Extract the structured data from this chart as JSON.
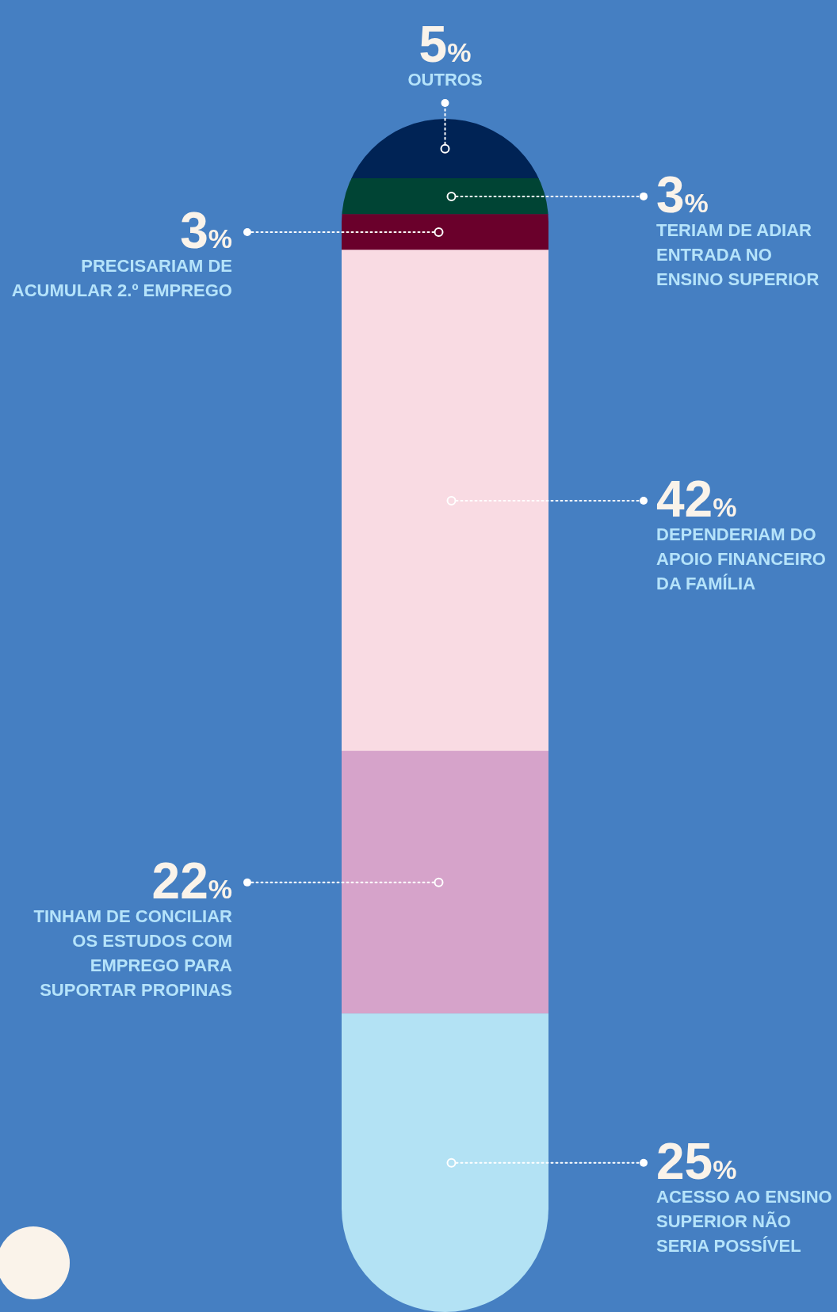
{
  "chart_data": {
    "type": "bar",
    "stacked": true,
    "categories": [
      null
    ],
    "tick_labels": false,
    "legend": false,
    "series": [
      {
        "color": "#b3e2f4",
        "values": [
          25
        ],
        "value_labels": [
          "25%"
        ]
      },
      {
        "color": "#d6a3ca",
        "values": [
          22
        ],
        "value_labels": [
          "22%"
        ]
      },
      {
        "color": "#f9dbe3",
        "values": [
          42
        ],
        "value_labels": [
          "42%"
        ]
      },
      {
        "color": "#6a002b",
        "values": [
          3
        ],
        "value_labels": [
          "3%"
        ]
      },
      {
        "color": "#004434",
        "values": [
          3
        ],
        "value_labels": [
          "3%"
        ]
      },
      {
        "color": "#002355",
        "values": [
          5
        ],
        "value_labels": [
          "5%"
        ]
      }
    ],
    "annotations": [
      "ACESSO AO ENSINO SUPERIOR NÃO SERIA POSSÍVEL",
      "TINHAM DE CONCILIAR OS ESTUDOS COM EMPREGO PARA SUPORTAR PROPINAS",
      "DEPENDERIAM DO APOIO FINANCEIRO DA FAMÍLIA",
      "PRECISARIAM DE ACUMULAR 2.º EMPREGO",
      "TERIAM DE ADIAR ENTRADA NO ENSINO SUPERIOR",
      "OUTROS"
    ]
  }
}
